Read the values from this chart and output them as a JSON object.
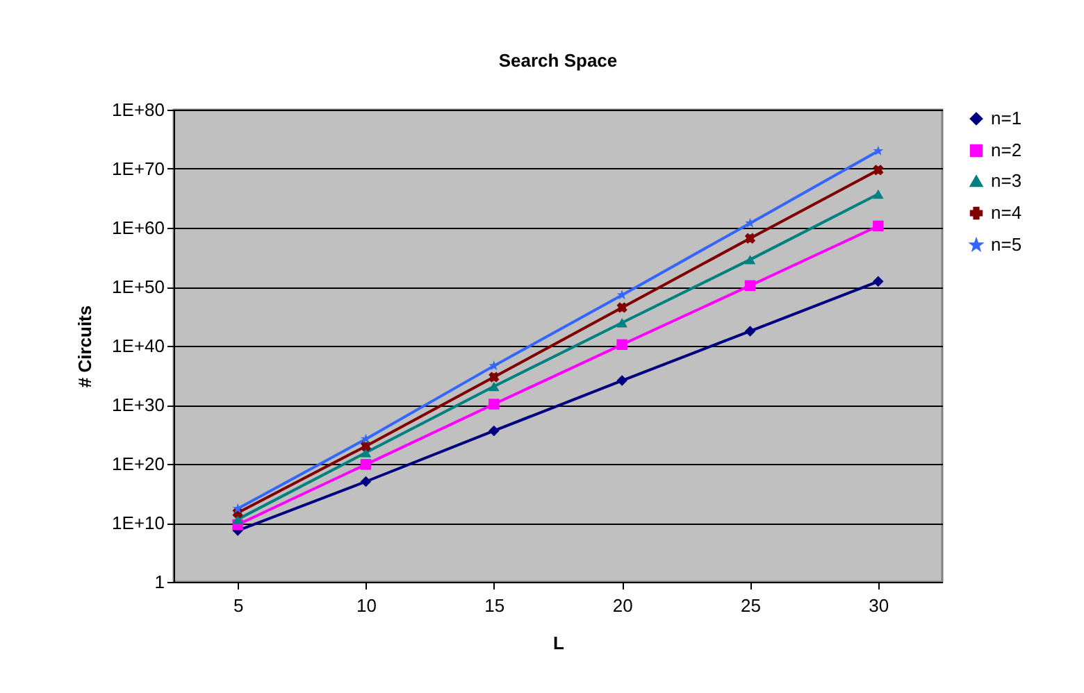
{
  "chart_data": {
    "type": "line",
    "title": "Search Space",
    "xlabel": "L",
    "ylabel": "# Circuits",
    "categories": [
      "5",
      "10",
      "15",
      "20",
      "25",
      "30"
    ],
    "series": [
      {
        "name": "n=1",
        "color": "#000080",
        "marker": "diamond",
        "values": [
          500000000.0,
          1e+17,
          4e+25,
          1.3e+34,
          3e+42,
          8e+50
        ]
      },
      {
        "name": "n=2",
        "color": "#ff00ff",
        "marker": "square",
        "values": [
          5000000000.0,
          8e+19,
          1.3e+30,
          1.6e+40,
          1.6e+50,
          2e+60
        ]
      },
      {
        "name": "n=3",
        "color": "#008080",
        "marker": "triangle",
        "values": [
          40000000000.0,
          8e+21,
          1.3e+33,
          8e+43,
          4e+54,
          5e+65
        ]
      },
      {
        "name": "n=4",
        "color": "#800000",
        "marker": "cross",
        "values": [
          500000000000.0,
          1e+23,
          5e+34,
          3e+46,
          1.6e+58,
          6e+69
        ]
      },
      {
        "name": "n=5",
        "color": "#3366ff",
        "marker": "star",
        "values": [
          2500000000000.0,
          1.6e+24,
          4e+36,
          4e+48,
          6e+60,
          1e+73
        ]
      }
    ],
    "log": "y",
    "ylim": [
      1,
      1e+80
    ],
    "yticks": [
      1,
      {
        "value": 10000000000.0,
        "label": "1E+10"
      },
      {
        "value": 1e+20,
        "label": "1E+20"
      },
      {
        "value": 1e+30,
        "label": "1E+30"
      },
      {
        "value": 1e+40,
        "label": "1E+40"
      },
      {
        "value": 1e+50,
        "label": "1E+50"
      },
      {
        "value": 1e+60,
        "label": "1E+60"
      },
      {
        "value": 1e+70,
        "label": "1E+70"
      },
      {
        "value": 1e+80,
        "label": "1E+80"
      }
    ],
    "grid": "y",
    "legend": "right",
    "line_style": "solid"
  }
}
